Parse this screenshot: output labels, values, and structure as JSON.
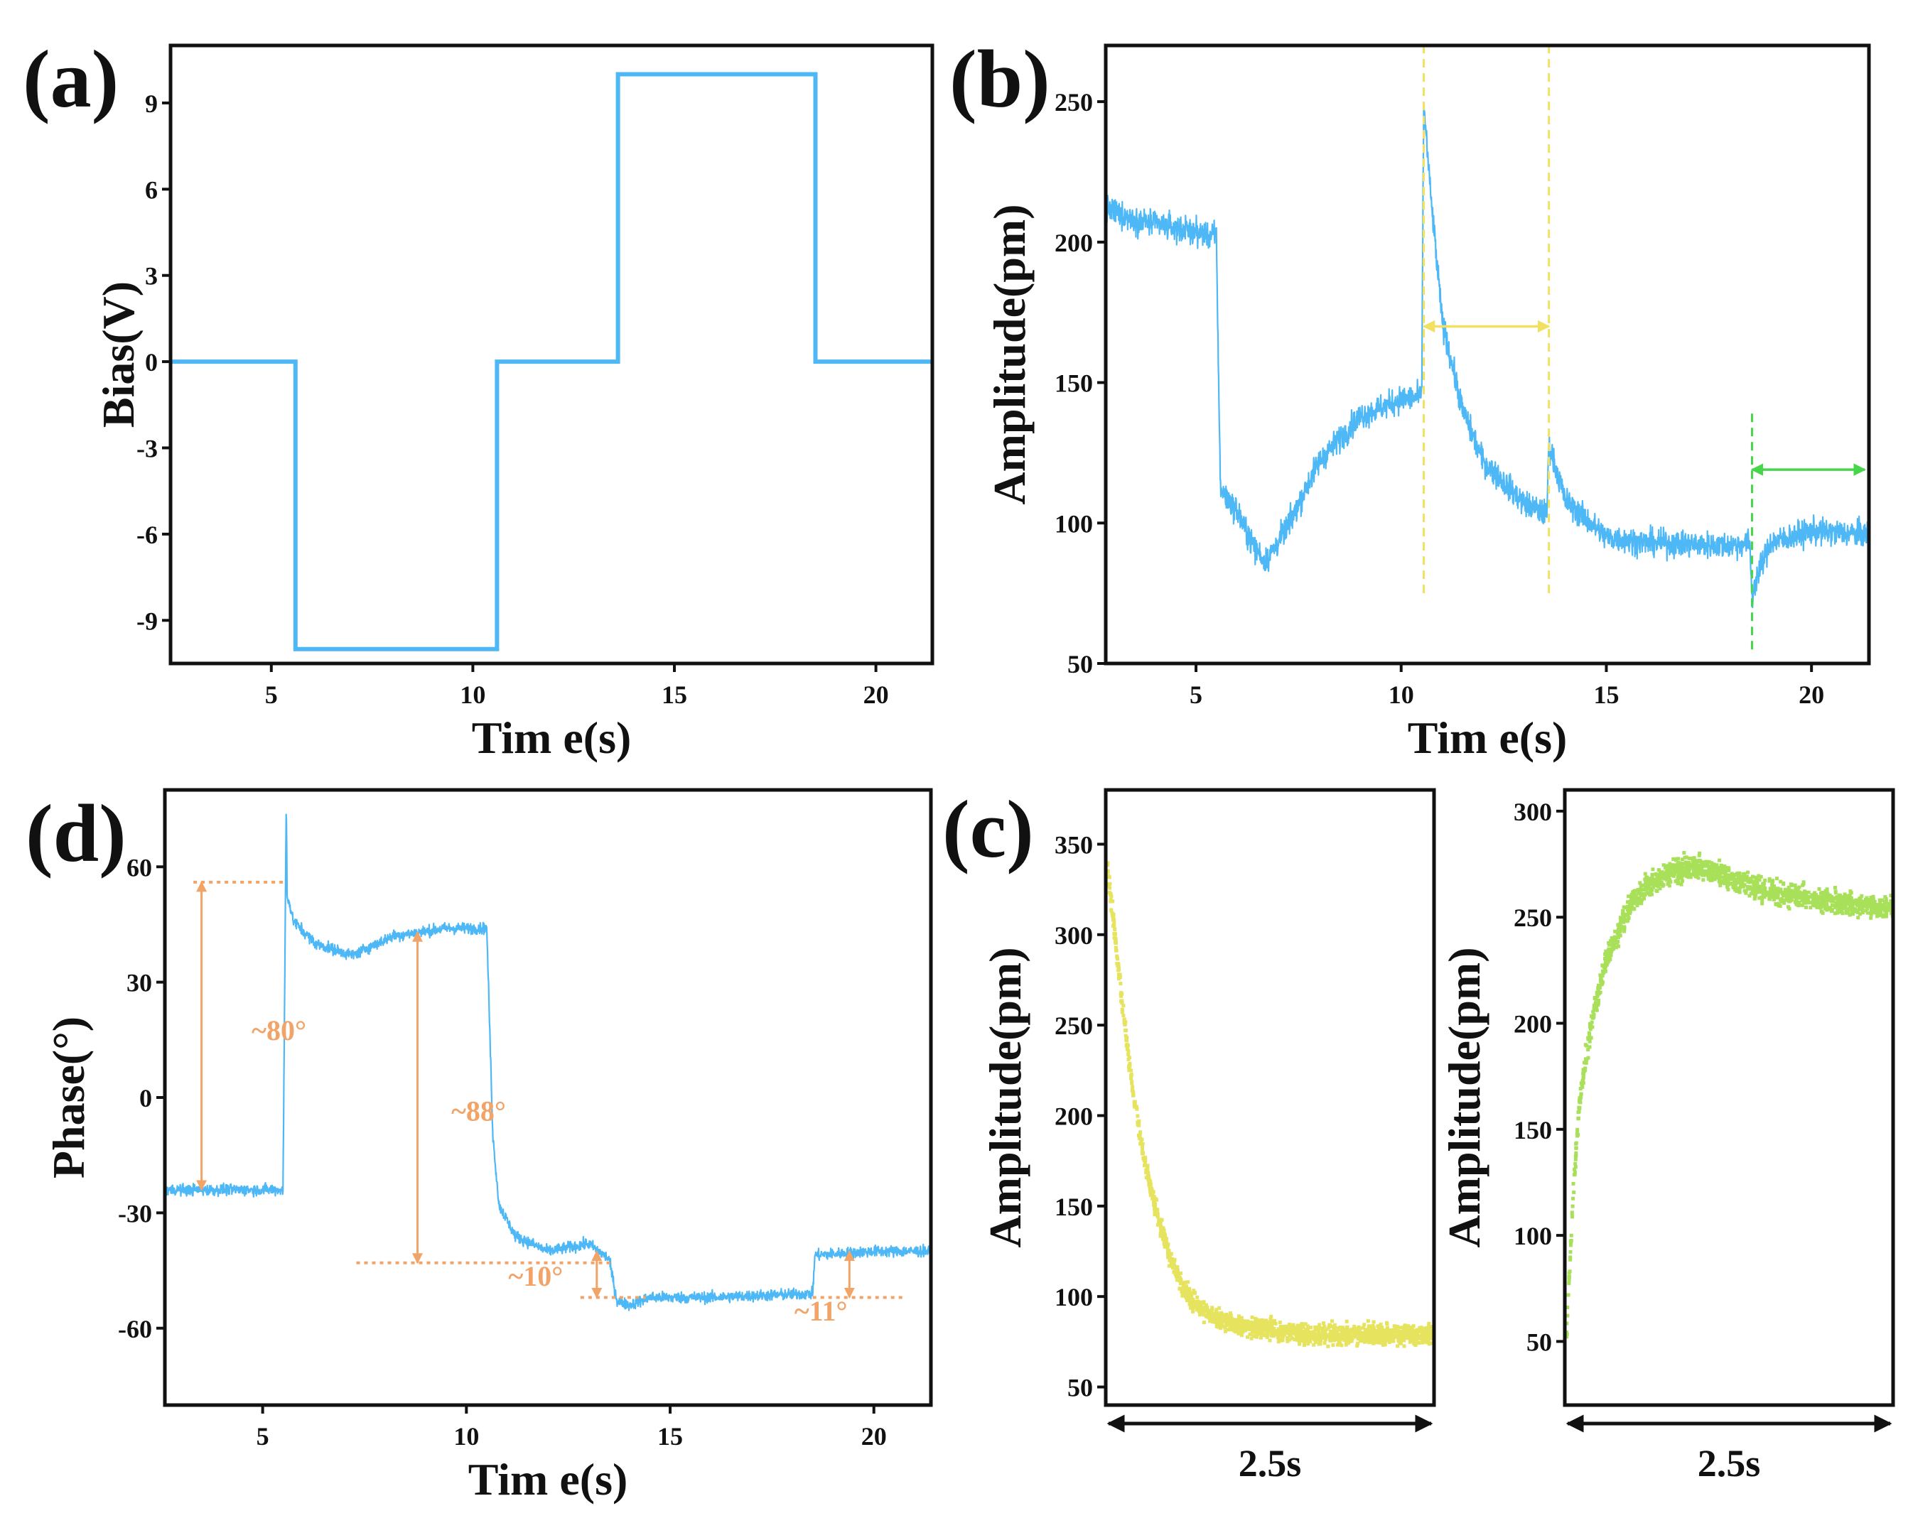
{
  "figure": {
    "colors": {
      "blue": "#4db8f5",
      "yellow": "#e6e35e",
      "green": "#a8e05a",
      "orange": "#f2a468",
      "marker_yellow": "#f2e060",
      "marker_green": "#45d64a",
      "axis": "#111111"
    }
  },
  "chart_data": [
    {
      "id": "a",
      "panel_label": "(a)",
      "type": "line",
      "xlabel": "Tim e(s)",
      "ylabel": "Bias(V)",
      "xlim": [
        2.5,
        21.4
      ],
      "ylim": [
        -10.5,
        11
      ],
      "xticks": [
        5,
        10,
        15,
        20
      ],
      "yticks": [
        9,
        6,
        3,
        0,
        -3,
        -6,
        -9
      ],
      "series": [
        {
          "name": "Bias",
          "color_key": "blue",
          "x": [
            2.5,
            5.6,
            5.6,
            10.6,
            10.6,
            13.6,
            13.6,
            18.5,
            18.5,
            21.4
          ],
          "y": [
            0,
            0,
            -10,
            -10,
            0,
            0,
            10,
            10,
            0,
            0
          ]
        }
      ]
    },
    {
      "id": "b",
      "panel_label": "(b)",
      "type": "line",
      "xlabel": "Tim e(s)",
      "ylabel": "Amplitude(pm)",
      "xlim": [
        2.8,
        21.4
      ],
      "ylim": [
        50,
        270
      ],
      "xticks": [
        5,
        10,
        15,
        20
      ],
      "yticks": [
        250,
        200,
        150,
        100,
        50
      ],
      "series": [
        {
          "name": "Amplitude",
          "color_key": "blue",
          "noise": 8,
          "x": [
            2.8,
            3.5,
            4.5,
            5.5,
            5.55,
            5.6,
            6.0,
            6.4,
            6.7,
            7.2,
            8.0,
            9.0,
            10.0,
            10.5,
            10.55,
            10.7,
            11.0,
            11.5,
            12.0,
            13.0,
            13.55,
            13.6,
            14.0,
            15.0,
            16.0,
            18.0,
            18.5,
            18.55,
            18.6,
            19.0,
            20.0,
            21.4
          ],
          "y": [
            212,
            208,
            205,
            202,
            150,
            112,
            104,
            92,
            86,
            98,
            122,
            138,
            144,
            145,
            250,
            220,
            172,
            140,
            122,
            107,
            103,
            128,
            108,
            95,
            93,
            92,
            93,
            72,
            78,
            93,
            97,
            96
          ]
        }
      ],
      "markers": [
        {
          "type": "vline",
          "x": 10.55,
          "y_range": [
            75,
            270
          ],
          "color_key": "marker_yellow"
        },
        {
          "type": "vline",
          "x": 13.6,
          "y_range": [
            75,
            270
          ],
          "color_key": "marker_yellow"
        },
        {
          "type": "double-arrow",
          "from": [
            10.55,
            170
          ],
          "to": [
            13.6,
            170
          ],
          "color_key": "marker_yellow"
        },
        {
          "type": "vline",
          "x": 18.55,
          "y_range": [
            55,
            140
          ],
          "color_key": "marker_green"
        },
        {
          "type": "double-arrow",
          "from": [
            18.55,
            119
          ],
          "to": [
            21.3,
            119
          ],
          "color_key": "marker_green"
        }
      ]
    },
    {
      "id": "d",
      "panel_label": "(d)",
      "type": "line",
      "xlabel": "Tim e(s)",
      "ylabel": "Phase(°)",
      "xlim": [
        2.6,
        21.4
      ],
      "ylim": [
        -80,
        80
      ],
      "xticks": [
        5,
        10,
        15,
        20
      ],
      "yticks": [
        60,
        30,
        0,
        -30,
        -60
      ],
      "series": [
        {
          "name": "Phase",
          "color_key": "blue",
          "noise": 2.5,
          "x": [
            2.6,
            4.0,
            5.5,
            5.58,
            5.6,
            5.75,
            6.3,
            7.2,
            8.2,
            9.5,
            10.5,
            10.65,
            10.8,
            11.2,
            12.0,
            13.0,
            13.5,
            13.7,
            14.0,
            14.5,
            16.0,
            18.5,
            18.55,
            20.0,
            21.4
          ],
          "y": [
            -24,
            -24,
            -24,
            78,
            53,
            46,
            40,
            37,
            42,
            44,
            44,
            -10,
            -28,
            -36,
            -40,
            -38,
            -42,
            -53,
            -54,
            -52,
            -52,
            -51,
            -41,
            -40,
            -40
          ]
        }
      ],
      "annotations": [
        {
          "text": "~80°",
          "dotted": {
            "x": [
              3.3,
              5.6
            ],
            "y": 56
          },
          "arrow": {
            "x": 3.5,
            "y": [
              56,
              -24
            ]
          },
          "label_at": [
            5.4,
            15
          ]
        },
        {
          "text": "~88°",
          "dotted": {
            "x": [
              7.3,
              13.6
            ],
            "y": -43
          },
          "arrow": {
            "x": 8.8,
            "y": [
              43,
              -43
            ]
          },
          "label_at": [
            10.3,
            -6
          ]
        },
        {
          "text": "~10°",
          "dotted": {
            "x": [
              12.8,
              14.4
            ],
            "y": -52
          },
          "arrow": {
            "x": 13.2,
            "y": [
              -40,
              -52
            ]
          },
          "label_at": [
            11.7,
            -49
          ]
        },
        {
          "text": "~11°",
          "dotted": {
            "x": [
              18.5,
              20.7
            ],
            "y": -52
          },
          "arrow": {
            "x": 19.4,
            "y": [
              -40,
              -52
            ]
          },
          "label_at": [
            18.7,
            -58
          ]
        }
      ]
    },
    {
      "id": "c1",
      "panel_label": "(c)",
      "type": "scatter",
      "xlabel": "2.5s",
      "ylabel": "Amplitude(pm)",
      "xlim": [
        0,
        2.5
      ],
      "ylim": [
        40,
        380
      ],
      "yticks": [
        350,
        300,
        250,
        200,
        150,
        100,
        50
      ],
      "series": [
        {
          "name": "Amplitude decay",
          "color_key": "yellow",
          "noise": 9,
          "x": [
            0,
            0.1,
            0.2,
            0.3,
            0.4,
            0.5,
            0.6,
            0.7,
            0.8,
            1.0,
            1.3,
            1.6,
            2.0,
            2.5
          ],
          "y": [
            340,
            270,
            210,
            170,
            140,
            118,
            103,
            95,
            90,
            85,
            82,
            80,
            80,
            80
          ]
        }
      ]
    },
    {
      "id": "c2",
      "panel_label": "",
      "type": "scatter",
      "xlabel": "2.5s",
      "ylabel": "Amplitude(pm)",
      "xlim": [
        0,
        2.5
      ],
      "ylim": [
        20,
        310
      ],
      "yticks": [
        300,
        250,
        200,
        150,
        100,
        50
      ],
      "series": [
        {
          "name": "Amplitude recovery",
          "color_key": "green",
          "noise": 9,
          "x": [
            0,
            0.05,
            0.1,
            0.2,
            0.3,
            0.4,
            0.5,
            0.6,
            0.8,
            1.0,
            1.3,
            1.6,
            2.0,
            2.5
          ],
          "y": [
            55,
            120,
            165,
            205,
            230,
            245,
            258,
            265,
            272,
            275,
            268,
            262,
            258,
            255
          ]
        }
      ]
    }
  ]
}
